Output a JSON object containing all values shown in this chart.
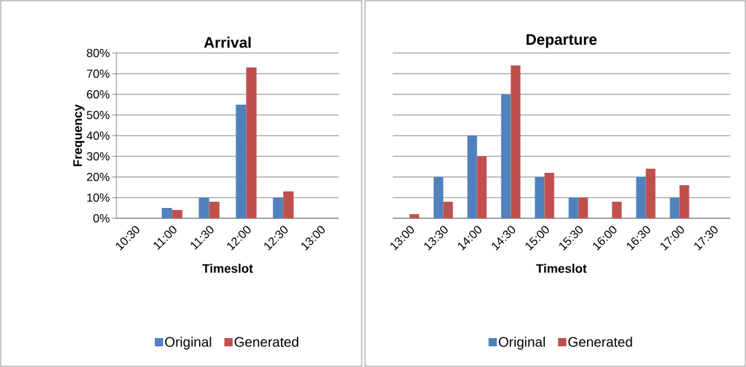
{
  "chart_data": [
    {
      "type": "bar",
      "title": "Arrival",
      "xlabel": "Timeslot",
      "ylabel": "Frequency",
      "categories": [
        "10:30",
        "11:00",
        "11:30",
        "12:00",
        "12:30",
        "13:00"
      ],
      "series": [
        {
          "name": "Original",
          "color": "#4f81bd",
          "values": [
            0,
            5,
            10,
            55,
            10,
            0
          ]
        },
        {
          "name": "Generated",
          "color": "#c0504d",
          "values": [
            0,
            4,
            8,
            73,
            13,
            0
          ]
        }
      ],
      "ylim": [
        0,
        80
      ],
      "yticks": [
        {
          "value": 0,
          "label": "0%"
        },
        {
          "value": 10,
          "label": "10%"
        },
        {
          "value": 20,
          "label": "20%"
        },
        {
          "value": 30,
          "label": "30%"
        },
        {
          "value": 40,
          "label": "40%"
        },
        {
          "value": 50,
          "label": "50%"
        },
        {
          "value": 60,
          "label": "60%"
        },
        {
          "value": 70,
          "label": "70%"
        },
        {
          "value": 80,
          "label": "80%"
        }
      ],
      "grid": "y",
      "legend": "bottom"
    },
    {
      "type": "bar",
      "title": "Departure",
      "xlabel": "Timeslot",
      "categories": [
        "13:00",
        "13:30",
        "14:00",
        "14:30",
        "15:00",
        "15:30",
        "16:00",
        "16:30",
        "17:00",
        "17:30"
      ],
      "series": [
        {
          "name": "Original",
          "color": "#4f81bd",
          "values": [
            0,
            20,
            40,
            60,
            20,
            10,
            0,
            20,
            10,
            0
          ]
        },
        {
          "name": "Generated",
          "color": "#c0504d",
          "values": [
            2,
            8,
            30,
            74,
            22,
            10,
            8,
            24,
            16,
            0
          ]
        }
      ],
      "ylim": [
        0,
        80
      ],
      "yticks": [
        {
          "value": 0,
          "label": null
        },
        {
          "value": 10,
          "label": null
        },
        {
          "value": 20,
          "label": null
        },
        {
          "value": 30,
          "label": null
        },
        {
          "value": 40,
          "label": null
        },
        {
          "value": 50,
          "label": null
        },
        {
          "value": 60,
          "label": null
        },
        {
          "value": 70,
          "label": null
        },
        {
          "value": 80,
          "label": null
        }
      ],
      "grid": "y",
      "legend": "bottom",
      "tick_labels": "x"
    }
  ]
}
